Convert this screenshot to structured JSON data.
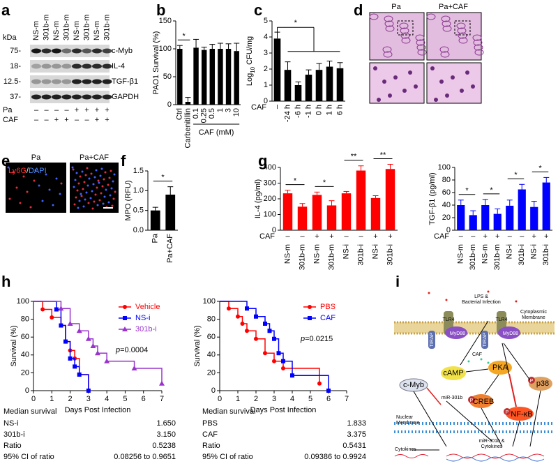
{
  "blot": {
    "panel_label": "a",
    "kda_label": "kDa",
    "lanes": [
      "NS-m",
      "301b-m",
      "NS-m",
      "301b-m",
      "NS-m",
      "301b-m",
      "NS-m",
      "301b-m"
    ],
    "markers": [
      "75-",
      "18-",
      "12.5-",
      "37-"
    ],
    "proteins": [
      "c-Myb",
      "IL-4",
      "TGF-β1",
      "GAPDH"
    ],
    "conditions": [
      {
        "name": "Pa",
        "values": [
          "–",
          "–",
          "–",
          "–",
          "+",
          "+",
          "+",
          "+"
        ]
      },
      {
        "name": "CAF",
        "values": [
          "–",
          "–",
          "+",
          "+",
          "–",
          "–",
          "+",
          "+"
        ]
      }
    ]
  },
  "chart_data": [
    {
      "type": "bar",
      "panel_label": "b",
      "y_label": "PAO1 Survival (%)",
      "categories": [
        "Ctrl",
        "Carbenitillin",
        "0.1",
        "0.25",
        "0.5",
        "1",
        "3",
        "10"
      ],
      "values": [
        100,
        5,
        102,
        98,
        100,
        100,
        100,
        96
      ],
      "errors": [
        6,
        8,
        15,
        5,
        8,
        10,
        9,
        14
      ],
      "color": "#000000",
      "ylim": [
        0,
        150
      ],
      "yticks": [
        0,
        50,
        100,
        150
      ],
      "group_label": "CAF (mM)",
      "significance": [
        "*"
      ]
    },
    {
      "type": "bar",
      "panel_label": "c",
      "y_label": {
        "text": "Log",
        "sub": "10",
        "rest": " CFU/mg"
      },
      "row_label": "CAF",
      "categories": [
        "–",
        "-24 h",
        "-6 h",
        "-1 h",
        "0 h",
        "1 h",
        "6 h"
      ],
      "values": [
        3.9,
        1.95,
        1.0,
        1.65,
        1.95,
        2.15,
        2.05
      ],
      "errors": [
        0.4,
        0.5,
        0.2,
        0.3,
        0.4,
        0.35,
        0.35
      ],
      "color": "#000000",
      "ylim": [
        0,
        5
      ],
      "yticks": [
        0,
        1,
        2,
        3,
        4,
        5
      ],
      "significance": [
        "*"
      ]
    },
    {
      "type": "bar",
      "panel_label": "f",
      "y_label": "MPO (RFU)",
      "categories": [
        "Pa",
        "Pa+CAF"
      ],
      "values": [
        0.5,
        0.9
      ],
      "errors": [
        0.08,
        0.2
      ],
      "color": "#000000",
      "ylim": [
        0,
        1.5
      ],
      "yticks": [
        {
          "value": 0,
          "label": "0.0"
        },
        0.5,
        {
          "value": 1,
          "label": "1.0"
        },
        1.5
      ],
      "significance": [
        "*"
      ]
    },
    {
      "type": "bar",
      "panel_label": "g",
      "y_label": "IL-4 (pg/ml)",
      "row_label": "CAF",
      "row": [
        "–",
        "–",
        "+",
        "+",
        "–",
        "–",
        "+",
        "+"
      ],
      "categories": [
        "NS-m",
        "301b-m",
        "NS-m",
        "301b-m",
        "NS-i",
        "301b-i",
        "NS-i",
        "301b-i"
      ],
      "values": [
        235,
        150,
        225,
        158,
        235,
        380,
        205,
        390
      ],
      "errors": [
        20,
        20,
        18,
        30,
        12,
        30,
        15,
        30
      ],
      "color": "#ff0000",
      "ylim": [
        0,
        400
      ],
      "yticks": [
        0,
        100,
        200,
        300,
        400
      ],
      "significance": [
        "*",
        "*",
        "**",
        "**"
      ]
    },
    {
      "type": "bar",
      "y_label": "TGF-β1 (pg/ml)",
      "row_label": "CAF",
      "row": [
        "–",
        "–",
        "+",
        "+",
        "–",
        "–",
        "+",
        "+"
      ],
      "categories": [
        "NS-m",
        "301b-m",
        "NS-m",
        "301b-m",
        "NS-i",
        "301b-i",
        "NS-i",
        "301b-i"
      ],
      "values": [
        40,
        24,
        40,
        26,
        39,
        65,
        37,
        76
      ],
      "errors": [
        8,
        7,
        9,
        8,
        9,
        8,
        9,
        8
      ],
      "color": "#0000ff",
      "ylim": [
        0,
        100
      ],
      "yticks": [
        0,
        20,
        40,
        60,
        80,
        100
      ],
      "significance": [
        "*",
        "*",
        "*",
        "*"
      ]
    },
    {
      "type": "survival",
      "panel_label": "h",
      "y_label": "Survival (%)",
      "x_label": "Days Post Infection",
      "xlim": [
        0,
        7
      ],
      "xticks": [
        0,
        1,
        2,
        3,
        4,
        5,
        6,
        7
      ],
      "ylim": [
        0,
        100
      ],
      "yticks": [
        0,
        20,
        40,
        60,
        80,
        100
      ],
      "series": [
        {
          "name": "Vehicle",
          "color": "#ff0000",
          "marker": "circle",
          "x": [
            0,
            0.5,
            1,
            1.5,
            1.75,
            2,
            2.25,
            2.5,
            3
          ],
          "values": [
            100,
            91,
            82,
            73,
            55,
            45,
            36,
            18,
            0
          ]
        },
        {
          "name": "NS-i",
          "color": "#0000ff",
          "marker": "square",
          "x": [
            0,
            1.25,
            1.5,
            1.75,
            2,
            2.25,
            2.5,
            3
          ],
          "values": [
            100,
            91,
            73,
            55,
            36,
            27,
            18,
            0
          ]
        },
        {
          "name": "301b-i",
          "color": "#9933cc",
          "marker": "triangle",
          "x": [
            0,
            1.5,
            2,
            2.5,
            3,
            3.25,
            3.5,
            4,
            5.5,
            7
          ],
          "values": [
            100,
            92,
            75,
            67,
            58,
            50,
            42,
            33,
            25,
            8
          ]
        }
      ],
      "p_value": {
        "symbol": "p",
        "text": "=0.0004"
      }
    },
    {
      "type": "survival",
      "y_label": "Survival (%)",
      "x_label": "Days Post Infection",
      "xlim": [
        0,
        7
      ],
      "xticks": [
        0,
        1,
        2,
        3,
        4,
        5,
        6,
        7
      ],
      "ylim": [
        0,
        100
      ],
      "yticks": [
        0,
        20,
        40,
        60,
        80,
        100
      ],
      "series": [
        {
          "name": "PBS",
          "color": "#ff0000",
          "marker": "circle",
          "x": [
            0,
            0.5,
            1,
            1.25,
            1.5,
            2,
            2.5,
            3,
            3.5,
            5.5
          ],
          "values": [
            100,
            92,
            83,
            75,
            67,
            58,
            42,
            33,
            25,
            8
          ]
        },
        {
          "name": "CAF",
          "color": "#0000ff",
          "marker": "square",
          "x": [
            0,
            1.5,
            2,
            2.5,
            2.75,
            3,
            3.25,
            3.5,
            4,
            6
          ],
          "values": [
            100,
            92,
            83,
            75,
            67,
            58,
            42,
            33,
            17,
            0
          ]
        }
      ],
      "p_value": {
        "symbol": "p",
        "text": "=0.0215"
      }
    }
  ],
  "images": {
    "d": {
      "panel_label": "d",
      "labels": [
        "Pa",
        "Pa+CAF"
      ]
    },
    "e": {
      "panel_label": "e",
      "labels": [
        "Pa",
        "Pa+CAF"
      ],
      "stain": [
        "Ly6G",
        "/",
        "DAPI"
      ]
    }
  },
  "survival_tables": [
    {
      "title": "Median survival",
      "rows": [
        [
          "NS-i",
          "1.650"
        ],
        [
          "301b-i",
          "3.150"
        ],
        [
          "Ratio",
          "0.5238"
        ],
        [
          "95% CI of ratio",
          "0.08256 to 0.9651"
        ]
      ]
    },
    {
      "title": "Median survival",
      "rows": [
        [
          "PBS",
          "1.833"
        ],
        [
          "CAF",
          "3.375"
        ],
        [
          "Ratio",
          "0.5431"
        ],
        [
          "95% CI of ratio",
          "0.09386 to 0.9924"
        ]
      ]
    }
  ],
  "diagram": {
    "panel_label": "i",
    "stimulus": [
      "LPS &",
      "Bacterial Infection"
    ],
    "cytoplasmic_membrane": [
      "Cytoplasmic",
      "Membrane"
    ],
    "tlr": "TLR4",
    "adaptor": "MyD88",
    "tirap": "TIRAP",
    "drug": "CAF",
    "nodes": [
      "cAMP",
      "PKA",
      "p38",
      "c-Myb",
      "miR-301b",
      "CREB",
      "NF-κB"
    ],
    "phospho": "P",
    "nuclear_membrane": [
      "Nuclear",
      "Membrane"
    ],
    "nuclear_output": [
      "miR-301b &",
      "Cytokines"
    ],
    "cytokines": "Cytokines"
  }
}
